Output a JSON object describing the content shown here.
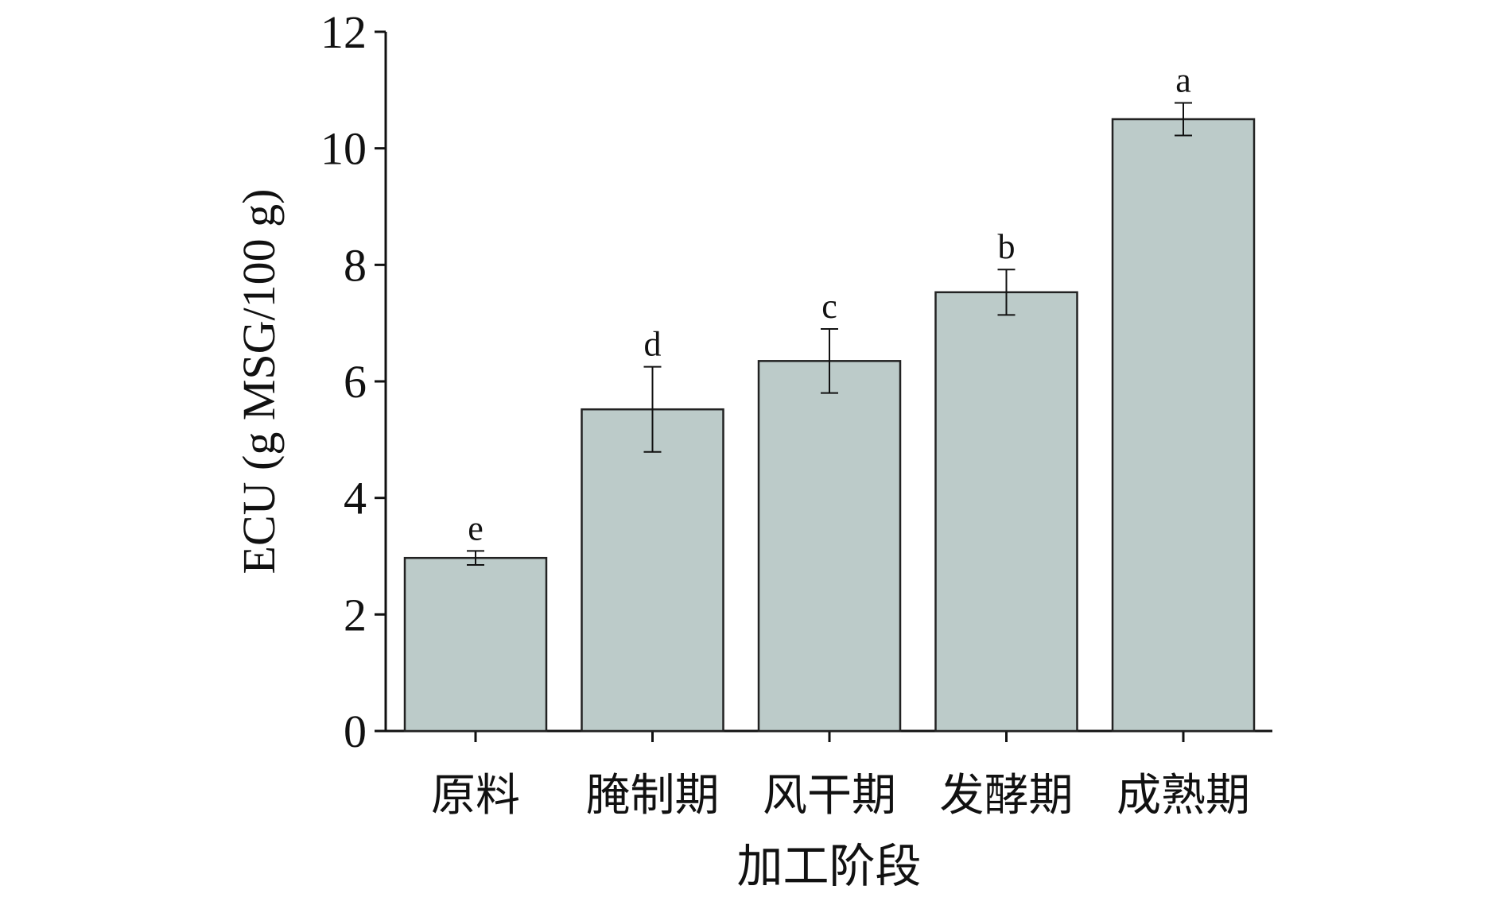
{
  "chart_data": {
    "type": "bar",
    "categories": [
      "原料",
      "腌制期",
      "风干期",
      "发酵期",
      "成熟期"
    ],
    "values": [
      2.97,
      5.52,
      6.35,
      7.53,
      10.5
    ],
    "errors": [
      0.12,
      0.73,
      0.55,
      0.39,
      0.28
    ],
    "significance_letters": [
      "e",
      "d",
      "c",
      "b",
      "a"
    ],
    "xlabel": "加工阶段",
    "ylabel": "ECU (g MSG/100 g)",
    "ylim": [
      0,
      12
    ],
    "yticks": [
      "0",
      "2",
      "4",
      "6",
      "8",
      "10",
      "12"
    ],
    "grid": false,
    "legend": "none",
    "bar_color": "#bccbc9",
    "bar_edge_color": "#222222"
  }
}
